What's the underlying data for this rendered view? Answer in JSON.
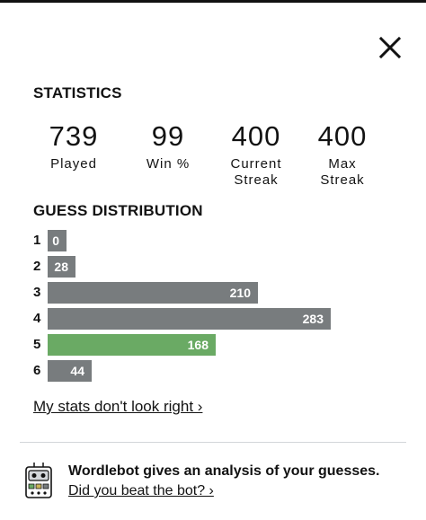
{
  "statistics": {
    "title": "STATISTICS",
    "items": [
      {
        "value": "739",
        "label": "Played"
      },
      {
        "value": "99",
        "label": "Win %"
      },
      {
        "value": "400",
        "label": "Current\nStreak"
      },
      {
        "value": "400",
        "label": "Max\nStreak"
      }
    ]
  },
  "distribution": {
    "title": "GUESS DISTRIBUTION",
    "max_value": 283,
    "highlight_color": "#6aaa64",
    "bar_color": "#787c7e",
    "rows": [
      {
        "guess": "1",
        "count": 0,
        "highlight": false
      },
      {
        "guess": "2",
        "count": 28,
        "highlight": false
      },
      {
        "guess": "3",
        "count": 210,
        "highlight": false
      },
      {
        "guess": "4",
        "count": 283,
        "highlight": false
      },
      {
        "guess": "5",
        "count": 168,
        "highlight": true
      },
      {
        "guess": "6",
        "count": 44,
        "highlight": false
      }
    ]
  },
  "stats_link": "My stats don't look right ›",
  "wordlebot": {
    "headline": "Wordlebot gives an analysis of your guesses.",
    "link": "Did you beat the bot? ›",
    "icon": "robot-icon"
  },
  "close_icon": "close-icon"
}
